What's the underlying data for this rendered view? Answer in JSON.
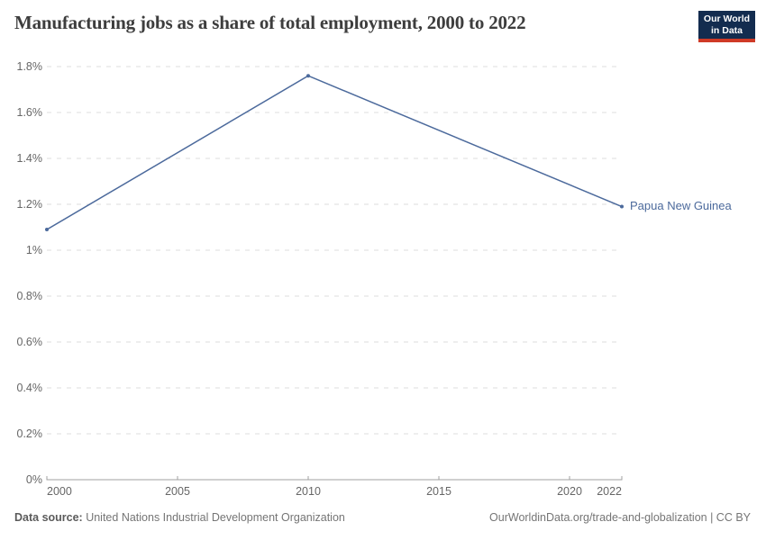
{
  "header": {
    "title": "Manufacturing jobs as a share of total employment, 2000 to 2022"
  },
  "logo": {
    "line1": "Our World",
    "line2": "in Data",
    "bg_color": "#132c4f",
    "accent_color": "#cf3a27"
  },
  "chart_data": {
    "type": "line",
    "title": "Manufacturing jobs as a share of total employment, 2000 to 2022",
    "xlim": [
      2000,
      2022
    ],
    "ylim": [
      0,
      1.8
    ],
    "grid": "dashed-horizontal",
    "legend_position": "end-of-line-label",
    "xticks": [
      2000,
      2005,
      2010,
      2015,
      2020,
      2022
    ],
    "yticks": [
      {
        "value": 0,
        "label": "0%"
      },
      {
        "value": 0.2,
        "label": "0.2%"
      },
      {
        "value": 0.4,
        "label": "0.4%"
      },
      {
        "value": 0.6,
        "label": "0.6%"
      },
      {
        "value": 0.8,
        "label": "0.8%"
      },
      {
        "value": 1,
        "label": "1%"
      },
      {
        "value": 1.2,
        "label": "1.2%"
      },
      {
        "value": 1.4,
        "label": "1.4%"
      },
      {
        "value": 1.6,
        "label": "1.6%"
      },
      {
        "value": 1.8,
        "label": "1.8%"
      }
    ],
    "series": [
      {
        "name": "Papua New Guinea",
        "color": "#4c6a9c",
        "points": [
          {
            "x": 2000,
            "y": 1.09
          },
          {
            "x": 2010,
            "y": 1.76
          },
          {
            "x": 2022,
            "y": 1.19
          }
        ]
      }
    ]
  },
  "footer": {
    "datasource_label": "Data source:",
    "datasource_value": " United Nations Industrial Development Organization",
    "right_text": "OurWorldinData.org/trade-and-globalization | CC BY"
  }
}
